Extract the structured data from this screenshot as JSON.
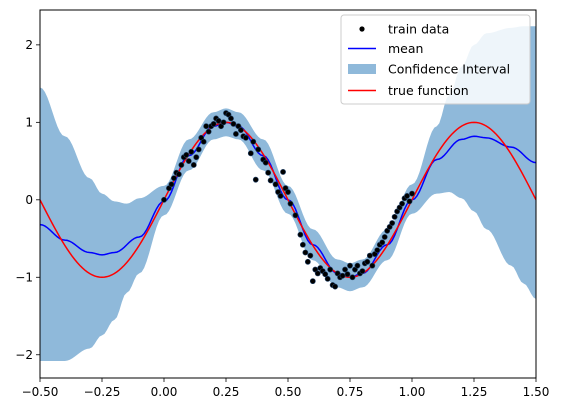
{
  "chart_data": {
    "type": "line",
    "title": "",
    "xlabel": "",
    "ylabel": "",
    "xlim": [
      -0.5,
      1.5
    ],
    "ylim": [
      -2.3,
      2.45
    ],
    "xticks": [
      -0.5,
      -0.25,
      0.0,
      0.25,
      0.5,
      0.75,
      1.0,
      1.25,
      1.5
    ],
    "xtick_labels": [
      "−0.50",
      "−0.25",
      "0.00",
      "0.25",
      "0.50",
      "0.75",
      "1.00",
      "1.25",
      "1.50"
    ],
    "yticks": [
      -2,
      -1,
      0,
      1,
      2
    ],
    "ytick_labels": [
      "−2",
      "−1",
      "0",
      "1",
      "2"
    ],
    "grid": false,
    "legend": {
      "position": "top-right",
      "entries": [
        {
          "label": "train data",
          "kind": "marker",
          "color": "#000000"
        },
        {
          "label": "mean",
          "kind": "line",
          "color": "#0000ff"
        },
        {
          "label": "Confidence Interval",
          "kind": "patch",
          "color": "#8fb9da"
        },
        {
          "label": "true function",
          "kind": "line",
          "color": "#ff0000"
        }
      ]
    },
    "series": [
      {
        "name": "train data",
        "kind": "scatter",
        "color": "#000000",
        "edgecolor": "#1f3f66",
        "x": [
          0.0,
          0.02,
          0.03,
          0.04,
          0.05,
          0.06,
          0.07,
          0.08,
          0.09,
          0.1,
          0.11,
          0.12,
          0.13,
          0.14,
          0.15,
          0.16,
          0.17,
          0.18,
          0.19,
          0.2,
          0.21,
          0.22,
          0.23,
          0.24,
          0.25,
          0.26,
          0.27,
          0.28,
          0.29,
          0.3,
          0.31,
          0.32,
          0.33,
          0.35,
          0.36,
          0.37,
          0.38,
          0.4,
          0.41,
          0.42,
          0.43,
          0.45,
          0.46,
          0.47,
          0.48,
          0.49,
          0.5,
          0.51,
          0.53,
          0.55,
          0.56,
          0.57,
          0.58,
          0.59,
          0.6,
          0.61,
          0.62,
          0.63,
          0.64,
          0.65,
          0.66,
          0.67,
          0.68,
          0.69,
          0.7,
          0.71,
          0.72,
          0.73,
          0.74,
          0.75,
          0.76,
          0.77,
          0.78,
          0.79,
          0.8,
          0.81,
          0.82,
          0.83,
          0.84,
          0.85,
          0.86,
          0.87,
          0.88,
          0.89,
          0.9,
          0.91,
          0.92,
          0.93,
          0.94,
          0.95,
          0.96,
          0.97,
          0.98,
          0.99,
          1.0
        ],
        "y": [
          0.0,
          0.15,
          0.2,
          0.28,
          0.35,
          0.33,
          0.45,
          0.55,
          0.58,
          0.5,
          0.62,
          0.45,
          0.55,
          0.65,
          0.8,
          0.75,
          0.95,
          0.88,
          0.95,
          0.98,
          1.05,
          1.02,
          0.95,
          1.0,
          1.12,
          1.1,
          1.05,
          0.98,
          0.85,
          0.95,
          0.9,
          0.82,
          0.8,
          0.6,
          0.75,
          0.26,
          0.65,
          0.52,
          0.48,
          0.35,
          0.25,
          0.2,
          0.1,
          0.05,
          0.36,
          0.15,
          0.1,
          -0.05,
          -0.2,
          -0.45,
          -0.58,
          -0.68,
          -0.8,
          -0.72,
          -1.05,
          -0.9,
          -0.95,
          -0.88,
          -0.92,
          -0.96,
          -1.02,
          -0.9,
          -1.1,
          -1.12,
          -0.95,
          -1.0,
          -0.98,
          -0.9,
          -0.96,
          -0.85,
          -1.0,
          -0.9,
          -0.85,
          -0.95,
          -0.92,
          -0.82,
          -0.8,
          -0.72,
          -0.85,
          -0.7,
          -0.65,
          -0.58,
          -0.55,
          -0.48,
          -0.4,
          -0.35,
          -0.3,
          -0.22,
          -0.15,
          -0.1,
          -0.05,
          0.02,
          0.05,
          -0.02,
          0.08
        ]
      },
      {
        "name": "mean",
        "kind": "line",
        "color": "#0000ff",
        "x": [
          -0.5,
          -0.4,
          -0.3,
          -0.25,
          -0.2,
          -0.1,
          0.0,
          0.1,
          0.2,
          0.25,
          0.3,
          0.4,
          0.5,
          0.6,
          0.7,
          0.75,
          0.8,
          0.9,
          1.0,
          1.1,
          1.2,
          1.25,
          1.3,
          1.4,
          1.5
        ],
        "y": [
          -0.32,
          -0.52,
          -0.68,
          -0.71,
          -0.68,
          -0.48,
          -0.02,
          0.57,
          0.95,
          1.0,
          0.95,
          0.57,
          0.0,
          -0.58,
          -0.95,
          -1.0,
          -0.95,
          -0.58,
          0.0,
          0.52,
          0.78,
          0.82,
          0.8,
          0.68,
          0.48
        ]
      },
      {
        "name": "Confidence Interval",
        "kind": "band",
        "color": "#8fb9da",
        "x": [
          -0.5,
          -0.4,
          -0.3,
          -0.25,
          -0.2,
          -0.15,
          -0.1,
          0.0,
          0.1,
          0.2,
          0.25,
          0.3,
          0.4,
          0.5,
          0.6,
          0.7,
          0.75,
          0.8,
          0.9,
          1.0,
          1.1,
          1.15,
          1.2,
          1.25,
          1.3,
          1.4,
          1.45,
          1.5
        ],
        "upper": [
          1.45,
          0.82,
          0.28,
          0.08,
          -0.02,
          -0.05,
          0.02,
          0.18,
          0.78,
          1.13,
          1.18,
          1.13,
          0.78,
          0.18,
          -0.38,
          -0.77,
          -0.82,
          -0.77,
          -0.38,
          0.2,
          0.95,
          1.35,
          1.72,
          2.0,
          2.15,
          2.22,
          2.24,
          2.24
        ],
        "lower": [
          -2.08,
          -2.08,
          -1.92,
          -1.75,
          -1.55,
          -1.2,
          -0.95,
          -0.2,
          0.38,
          0.78,
          0.82,
          0.78,
          0.38,
          -0.18,
          -0.78,
          -1.13,
          -1.18,
          -1.13,
          -0.78,
          -0.18,
          0.08,
          0.1,
          0.02,
          -0.15,
          -0.38,
          -0.85,
          -1.08,
          -1.28
        ]
      },
      {
        "name": "true function",
        "kind": "line",
        "color": "#ff0000",
        "function": "sin(2*pi*x)",
        "x_range": [
          -0.5,
          1.5
        ]
      }
    ]
  }
}
